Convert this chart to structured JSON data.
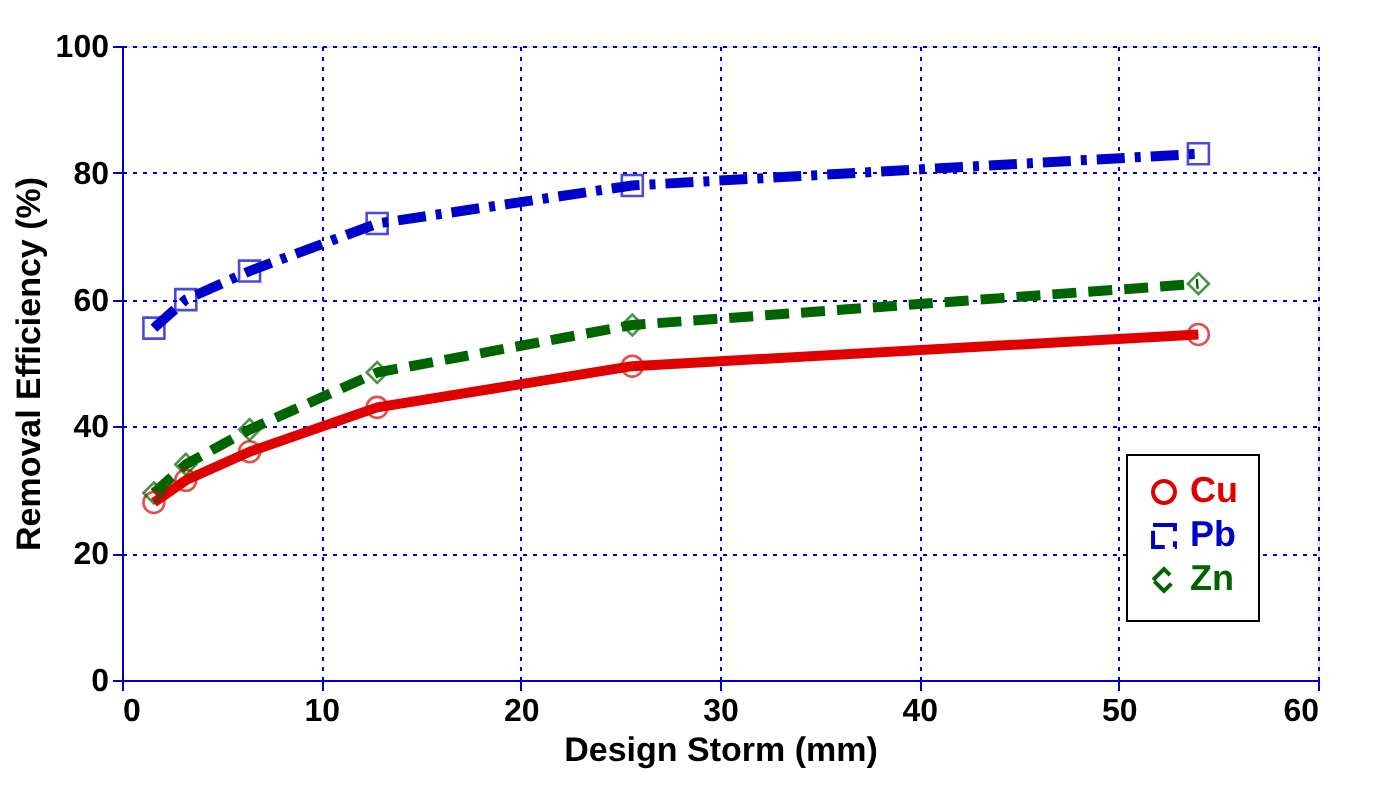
{
  "chart_data": {
    "type": "line",
    "xlabel": "Design Storm (mm)",
    "ylabel": "Removal Efficiency (%)",
    "x": [
      1.6,
      3.2,
      6.4,
      12.8,
      25.6,
      54
    ],
    "series": [
      {
        "name": "Cu",
        "color": "#e00000",
        "values": [
          28,
          31.5,
          36,
          43,
          49.5,
          54.5
        ],
        "marker": "circle",
        "line_style": "solid"
      },
      {
        "name": "Pb",
        "color": "#0000cc",
        "values": [
          55.5,
          60,
          64.5,
          72,
          78,
          83
        ],
        "marker": "square",
        "line_style": "dashdot"
      },
      {
        "name": "Zn",
        "color": "#006400",
        "values": [
          29.5,
          34,
          39.5,
          48.5,
          56,
          62.5
        ],
        "marker": "diamond",
        "line_style": "dashed"
      }
    ],
    "xlim": [
      0,
      60
    ],
    "xticks": [
      0,
      10,
      20,
      30,
      40,
      50,
      60
    ],
    "ylim": [
      0,
      100
    ],
    "yticks": [
      0,
      20,
      40,
      60,
      80,
      100
    ],
    "grid": true,
    "legend": "bottom right"
  }
}
